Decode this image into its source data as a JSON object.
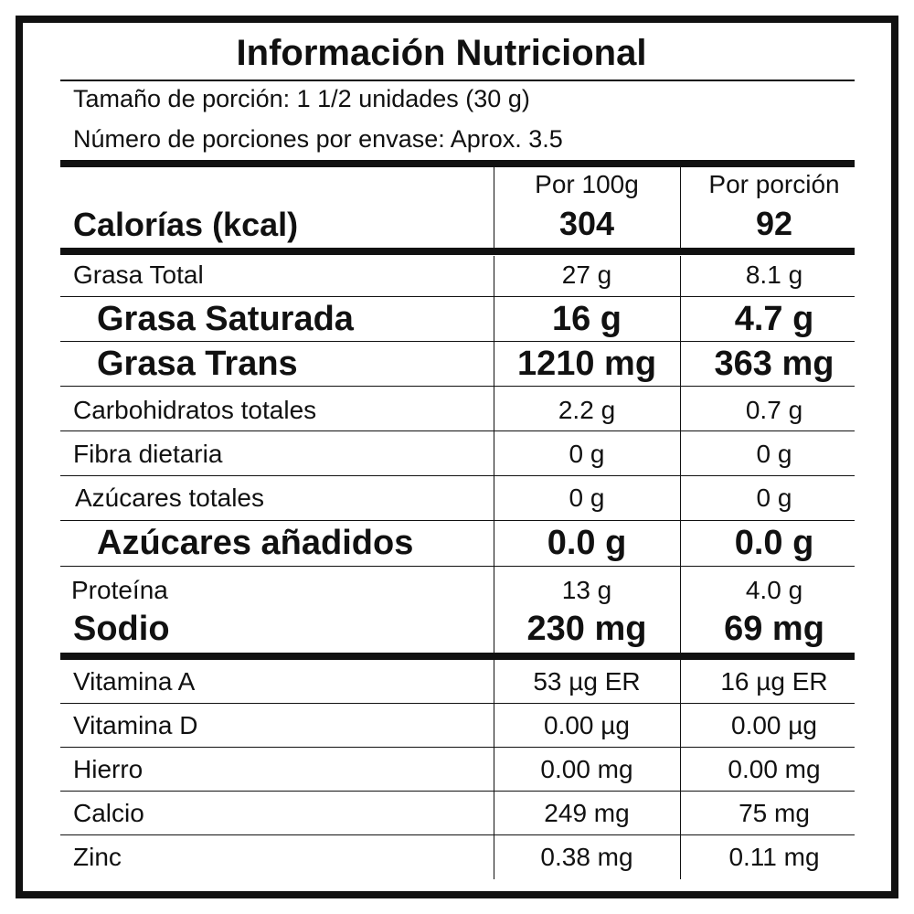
{
  "title": "Información Nutricional",
  "serving_size": "Tamaño de porción: 1 1/2 unidades (30 g)",
  "servings_per_container": "Número de porciones por envase: Aprox. 3.5",
  "columns": {
    "per_100g": "Por 100g",
    "per_serving": "Por porción"
  },
  "calories": {
    "label": "Calorías (kcal)",
    "per_100g": "304",
    "per_serving": "92"
  },
  "nutrients": [
    {
      "label": "Grasa Total",
      "per_100g": "27 g",
      "per_serving": "8.1 g"
    },
    {
      "label": "Grasa Saturada",
      "per_100g": "16 g",
      "per_serving": "4.7 g"
    },
    {
      "label": "Grasa Trans",
      "per_100g": "1210 mg",
      "per_serving": "363 mg"
    },
    {
      "label": "Carbohidratos totales",
      "per_100g": "2.2 g",
      "per_serving": "0.7 g"
    },
    {
      "label": "Fibra dietaria",
      "per_100g": "0 g",
      "per_serving": "0 g"
    },
    {
      "label": "Azúcares totales",
      "per_100g": "0 g",
      "per_serving": "0 g"
    },
    {
      "label": "Azúcares añadidos",
      "per_100g": "0.0 g",
      "per_serving": "0.0 g"
    },
    {
      "label": "Proteína",
      "per_100g": "13 g",
      "per_serving": "4.0 g"
    },
    {
      "label": "Sodio",
      "per_100g": "230 mg",
      "per_serving": "69 mg"
    }
  ],
  "vitamins_minerals": [
    {
      "label": "Vitamina A",
      "per_100g": "53 µg ER",
      "per_serving": "16 µg ER"
    },
    {
      "label": "Vitamina D",
      "per_100g": "0.00 µg",
      "per_serving": "0.00 µg"
    },
    {
      "label": "Hierro",
      "per_100g": "0.00 mg",
      "per_serving": "0.00 mg"
    },
    {
      "label": "Calcio",
      "per_100g": "249 mg",
      "per_serving": "75 mg"
    },
    {
      "label": "Zinc",
      "per_100g": "0.38 mg",
      "per_serving": "0.11 mg"
    }
  ]
}
